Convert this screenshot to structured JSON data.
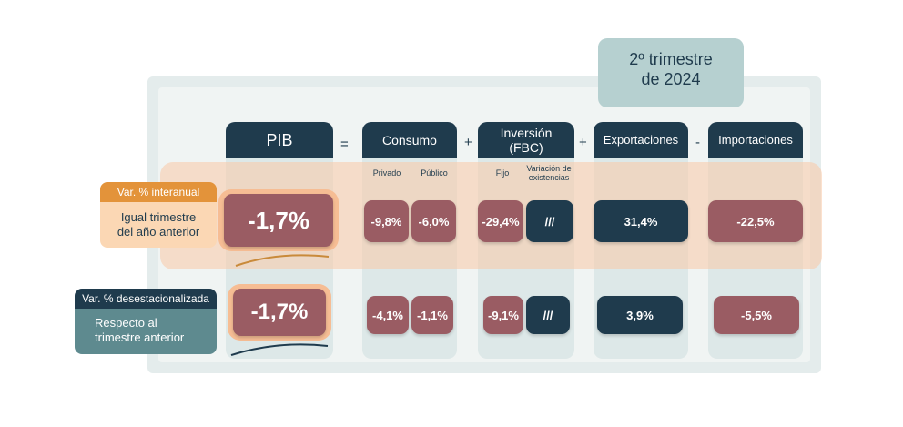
{
  "quarter": {
    "line1": "2º trimestre",
    "line2": "de 2024"
  },
  "operators": {
    "equals": "=",
    "plus1": "+",
    "plus2": "+",
    "minus": "-"
  },
  "headers": {
    "pib": "PIB",
    "consumo": "Consumo",
    "inversion_line1": "Inversión",
    "inversion_line2": "(FBC)",
    "exportaciones": "Exportaciones",
    "importaciones": "Importaciones"
  },
  "subheaders": {
    "privado": "Privado",
    "publico": "Público",
    "fijo": "Fijo",
    "variacion_line1": "Variación de",
    "variacion_line2": "existencias"
  },
  "row_interanual": {
    "label": "Var. % interanual",
    "desc_line1": "Igual trimestre",
    "desc_line2": "del año anterior",
    "pib": "-1,7%",
    "privado": "-9,8%",
    "publico": "-6,0%",
    "fijo": "-29,4%",
    "variacion": "///",
    "exportaciones": "31,4%",
    "importaciones": "-22,5%"
  },
  "row_desestacionalizada": {
    "label": "Var. % desestacionalizada",
    "desc_line1": "Respecto al",
    "desc_line2": "trimestre anterior",
    "pib": "-1,7%",
    "privado": "-4,1%",
    "publico": "-1,1%",
    "fijo": "-9,1%",
    "variacion": "///",
    "exportaciones": "3,9%",
    "importaciones": "-5,5%"
  },
  "colors": {
    "navy": "#1f3b4d",
    "mauve": "#9a5c63",
    "orange": "#e3933a",
    "teal": "#5e8a8f"
  }
}
